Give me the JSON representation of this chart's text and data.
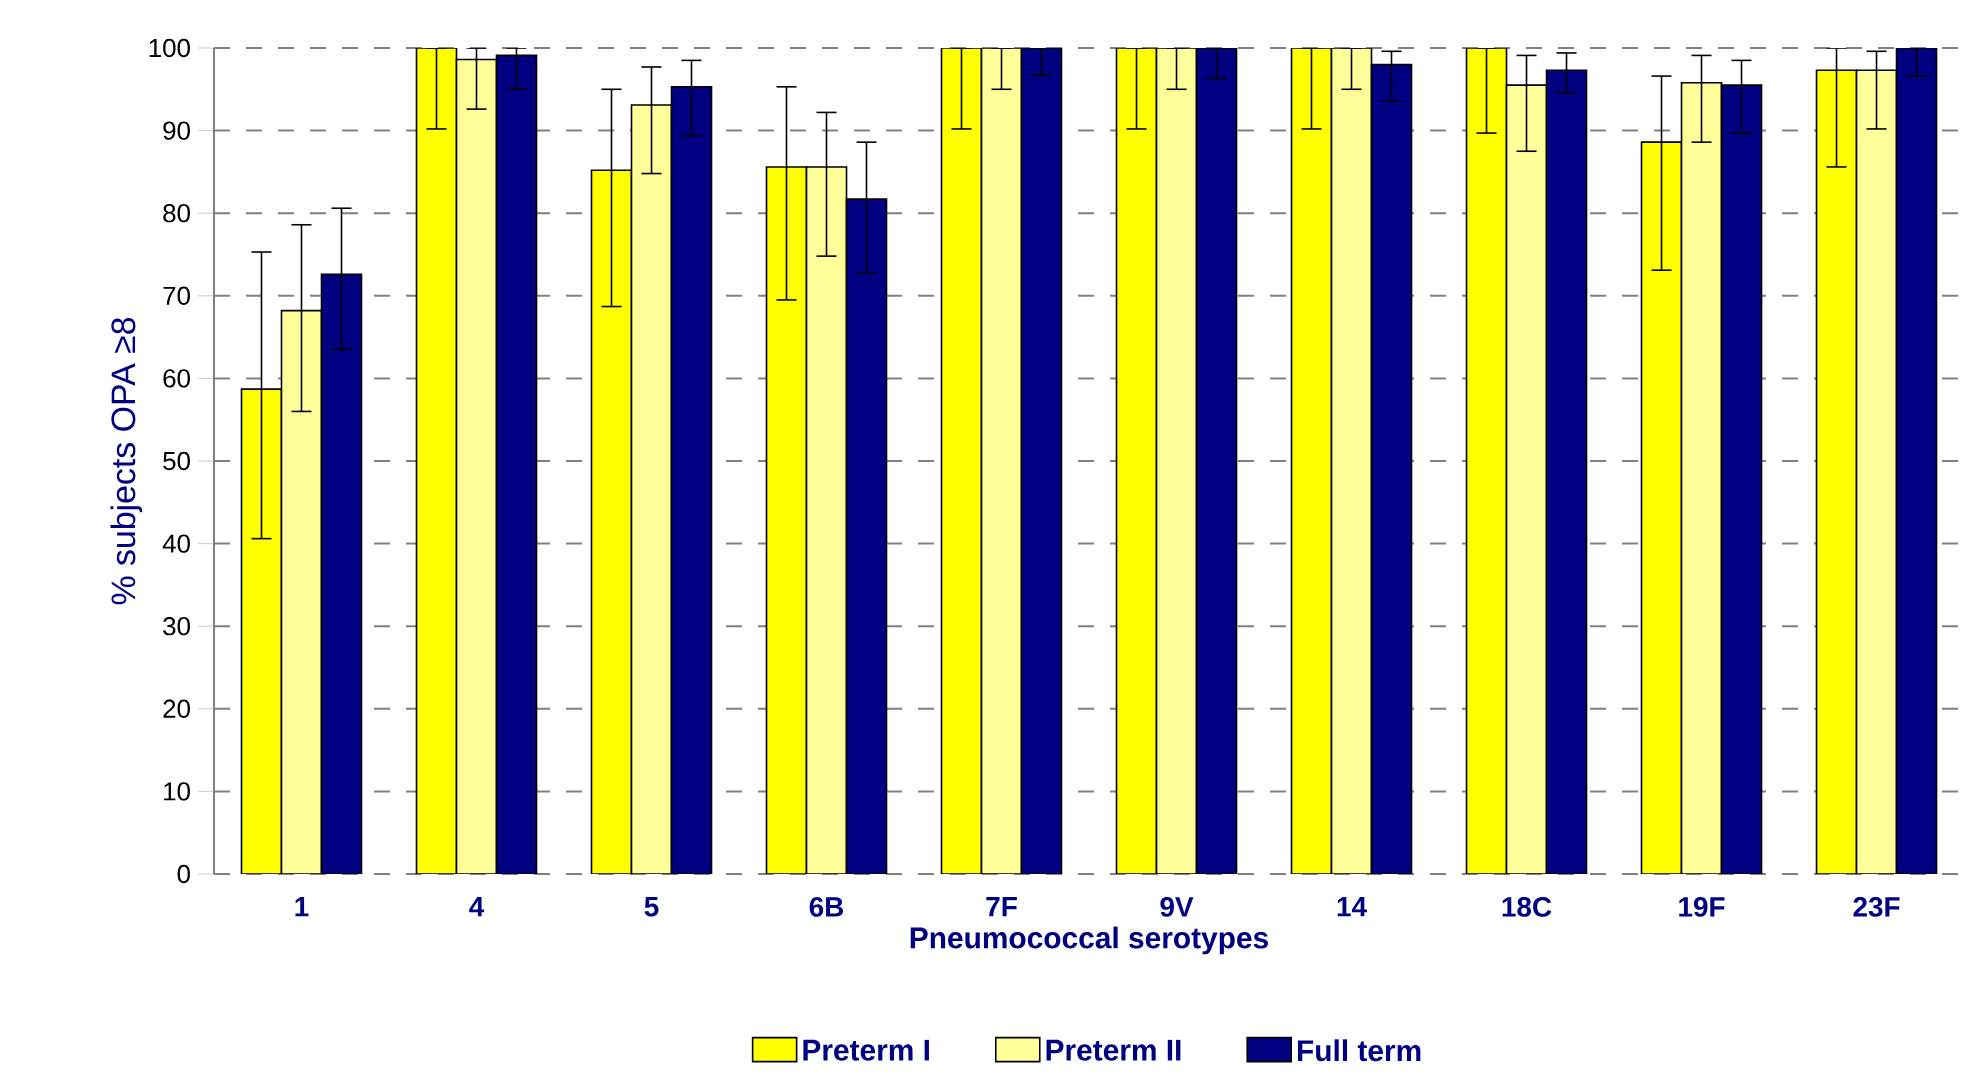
{
  "chart_data": {
    "type": "bar",
    "xlabel": "Pneumococcal serotypes",
    "ylabel": "% subjects OPA ≥8",
    "categories": [
      "1",
      "4",
      "5",
      "6B",
      "7F",
      "9V",
      "14",
      "18C",
      "19F",
      "23F"
    ],
    "ylim": [
      0,
      100
    ],
    "yticks": [
      0,
      10,
      20,
      30,
      40,
      50,
      60,
      70,
      80,
      90,
      100
    ],
    "grid": "y",
    "legend": "bottom",
    "series": [
      {
        "name": "Preterm I",
        "color": "#ffff00",
        "values": [
          58.7,
          100,
          85.2,
          85.6,
          100,
          100,
          100,
          100,
          88.6,
          97.3
        ],
        "errors": [
          [
            40.6,
            75.3
          ],
          [
            90.2,
            100
          ],
          [
            68.7,
            95.0
          ],
          [
            69.5,
            95.3
          ],
          [
            90.2,
            100
          ],
          [
            90.2,
            100
          ],
          [
            90.2,
            100
          ],
          [
            89.7,
            100
          ],
          [
            73.1,
            96.6
          ],
          [
            85.6,
            100
          ]
        ]
      },
      {
        "name": "Preterm II",
        "color": "#ffff99",
        "values": [
          68.2,
          98.6,
          93.1,
          85.6,
          100,
          100,
          100,
          95.5,
          95.8,
          97.3
        ],
        "errors": [
          [
            56.0,
            78.6
          ],
          [
            92.6,
            100
          ],
          [
            84.8,
            97.7
          ],
          [
            74.8,
            92.2
          ],
          [
            95.0,
            100
          ],
          [
            95.0,
            100
          ],
          [
            95.0,
            100
          ],
          [
            87.5,
            99.1
          ],
          [
            88.6,
            99.1
          ],
          [
            90.2,
            99.6
          ]
        ]
      },
      {
        "name": "Full term",
        "color": "#000080",
        "values": [
          72.6,
          99.1,
          95.3,
          81.7,
          100,
          100,
          98.0,
          97.3,
          95.5,
          100
        ],
        "errors": [
          [
            63.5,
            80.6
          ],
          [
            95.0,
            100
          ],
          [
            89.4,
            98.5
          ],
          [
            72.8,
            88.6
          ],
          [
            96.7,
            100
          ],
          [
            96.3,
            100
          ],
          [
            93.6,
            99.6
          ],
          [
            94.6,
            99.4
          ],
          [
            89.7,
            98.5
          ],
          [
            96.6,
            100
          ]
        ]
      }
    ]
  }
}
